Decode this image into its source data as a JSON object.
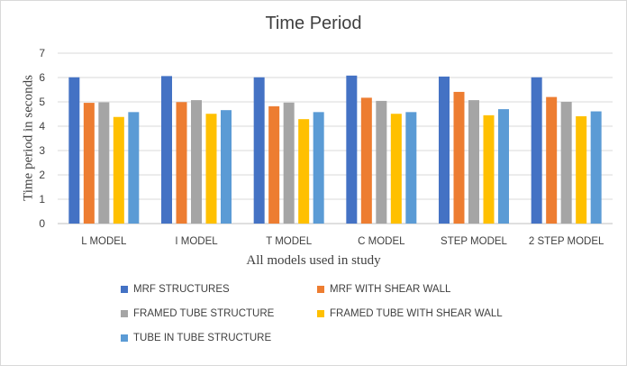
{
  "chart_data": {
    "type": "bar",
    "title": "Time Period",
    "xlabel": "All models used in study",
    "ylabel": "Time period in seconds",
    "ylim": [
      0,
      7
    ],
    "yticks": [
      0,
      1,
      2,
      3,
      4,
      5,
      6,
      7
    ],
    "grid": true,
    "legend_position": "bottom",
    "categories": [
      "L MODEL",
      "I MODEL",
      "T MODEL",
      "C MODEL",
      "STEP MODEL",
      "2 STEP MODEL"
    ],
    "series": [
      {
        "name": "MRF STRUCTURES",
        "color": "#4472c4",
        "values": [
          6.01,
          6.06,
          6.01,
          6.08,
          6.04,
          6.01
        ]
      },
      {
        "name": "MRF WITH SHEAR WALL",
        "color": "#ed7d31",
        "values": [
          4.96,
          4.99,
          4.82,
          5.17,
          5.41,
          5.2
        ]
      },
      {
        "name": "FRAMED TUBE STRUCTURE",
        "color": "#a5a5a5",
        "values": [
          4.98,
          5.07,
          4.97,
          5.04,
          5.07,
          5.0
        ]
      },
      {
        "name": "FRAMED TUBE WITH SHEAR WALL",
        "color": "#ffc000",
        "values": [
          4.38,
          4.51,
          4.29,
          4.51,
          4.45,
          4.41
        ]
      },
      {
        "name": "TUBE IN TUBE STRUCTURE",
        "color": "#5b9bd5",
        "values": [
          4.58,
          4.66,
          4.58,
          4.58,
          4.7,
          4.61
        ]
      }
    ]
  }
}
